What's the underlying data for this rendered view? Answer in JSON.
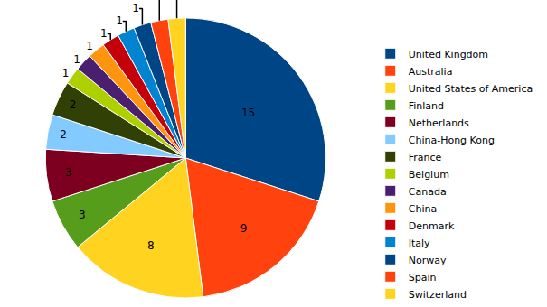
{
  "chart_data": {
    "type": "pie",
    "categories": [
      "United Kingdom",
      "Australia",
      "United States of America",
      "Finland",
      "Netherlands",
      "China-Hong Kong",
      "France",
      "Belgium",
      "Canada",
      "China",
      "Denmark",
      "Italy",
      "Norway",
      "Spain",
      "Switzerland"
    ],
    "values": [
      15,
      9,
      8,
      3,
      3,
      2,
      2,
      1,
      1,
      1,
      1,
      1,
      1,
      1,
      1
    ],
    "colors": [
      "#004586",
      "#ff420e",
      "#ffd320",
      "#579d1c",
      "#7e0021",
      "#83caff",
      "#314004",
      "#aecf00",
      "#4b1f6f",
      "#ff950e",
      "#c5000b",
      "#0084d1",
      "#004586",
      "#ff420e",
      "#ffd320"
    ],
    "data_labels": true,
    "legend": "right"
  }
}
